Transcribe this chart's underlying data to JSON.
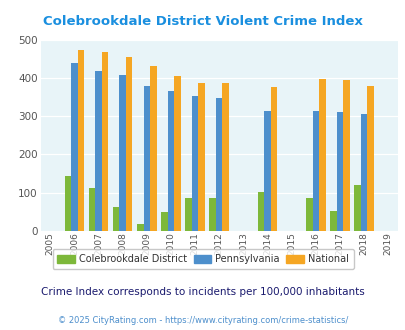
{
  "title": "Colebrookdale District Violent Crime Index",
  "subtitle": "Crime Index corresponds to incidents per 100,000 inhabitants",
  "footer": "© 2025 CityRating.com - https://www.cityrating.com/crime-statistics/",
  "years": [
    2005,
    2006,
    2007,
    2008,
    2009,
    2010,
    2011,
    2012,
    2013,
    2014,
    2015,
    2016,
    2017,
    2018,
    2019
  ],
  "colebrookdale": [
    0,
    143,
    112,
    63,
    17,
    49,
    85,
    86,
    0,
    101,
    0,
    85,
    53,
    119,
    0
  ],
  "pennsylvania": [
    0,
    439,
    417,
    407,
    379,
    365,
    352,
    347,
    0,
    314,
    0,
    313,
    310,
    305,
    0
  ],
  "national": [
    0,
    474,
    467,
    455,
    432,
    405,
    387,
    387,
    0,
    376,
    0,
    397,
    394,
    380,
    0
  ],
  "bar_width": 0.27,
  "ylim": [
    0,
    500
  ],
  "yticks": [
    0,
    100,
    200,
    300,
    400,
    500
  ],
  "color_cole": "#7db83a",
  "color_penn": "#4d8fcc",
  "color_natl": "#f5a623",
  "bg_color": "#e8f4f8",
  "title_color": "#1a8fdf",
  "subtitle_color": "#1a1a6e",
  "footer_color": "#4d8fcc",
  "legend_labels": [
    "Colebrookdale District",
    "Pennsylvania",
    "National"
  ],
  "legend_text_color": "#333333"
}
